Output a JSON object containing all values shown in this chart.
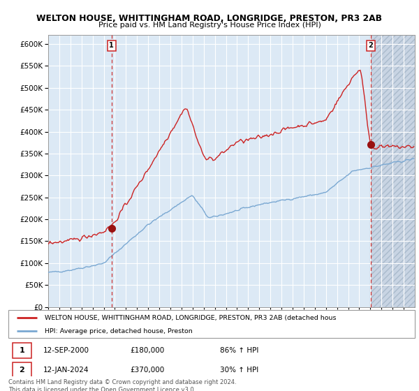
{
  "title1": "WELTON HOUSE, WHITTINGHAM ROAD, LONGRIDGE, PRESTON, PR3 2AB",
  "title2": "Price paid vs. HM Land Registry's House Price Index (HPI)",
  "hpi_label": "HPI: Average price, detached house, Preston",
  "property_label": "WELTON HOUSE, WHITTINGHAM ROAD, LONGRIDGE, PRESTON, PR3 2AB (detached hous",
  "sale1_date": "12-SEP-2000",
  "sale1_price": 180000,
  "sale1_pct": "86% ↑ HPI",
  "sale2_date": "12-JAN-2024",
  "sale2_price": 370000,
  "sale2_pct": "30% ↑ HPI",
  "ylim": [
    0,
    620000
  ],
  "yticks": [
    0,
    50000,
    100000,
    150000,
    200000,
    250000,
    300000,
    350000,
    400000,
    450000,
    500000,
    550000,
    600000
  ],
  "hpi_color": "#7aa8d2",
  "property_color": "#cc2222",
  "sale_marker_color": "#991111",
  "dashed_color": "#cc3333",
  "bg_color": "#dce9f5",
  "hatch_bg": "#c8d4e3",
  "grid_color": "#ffffff",
  "footer_text": "Contains HM Land Registry data © Crown copyright and database right 2024.\nThis data is licensed under the Open Government Licence v3.0."
}
